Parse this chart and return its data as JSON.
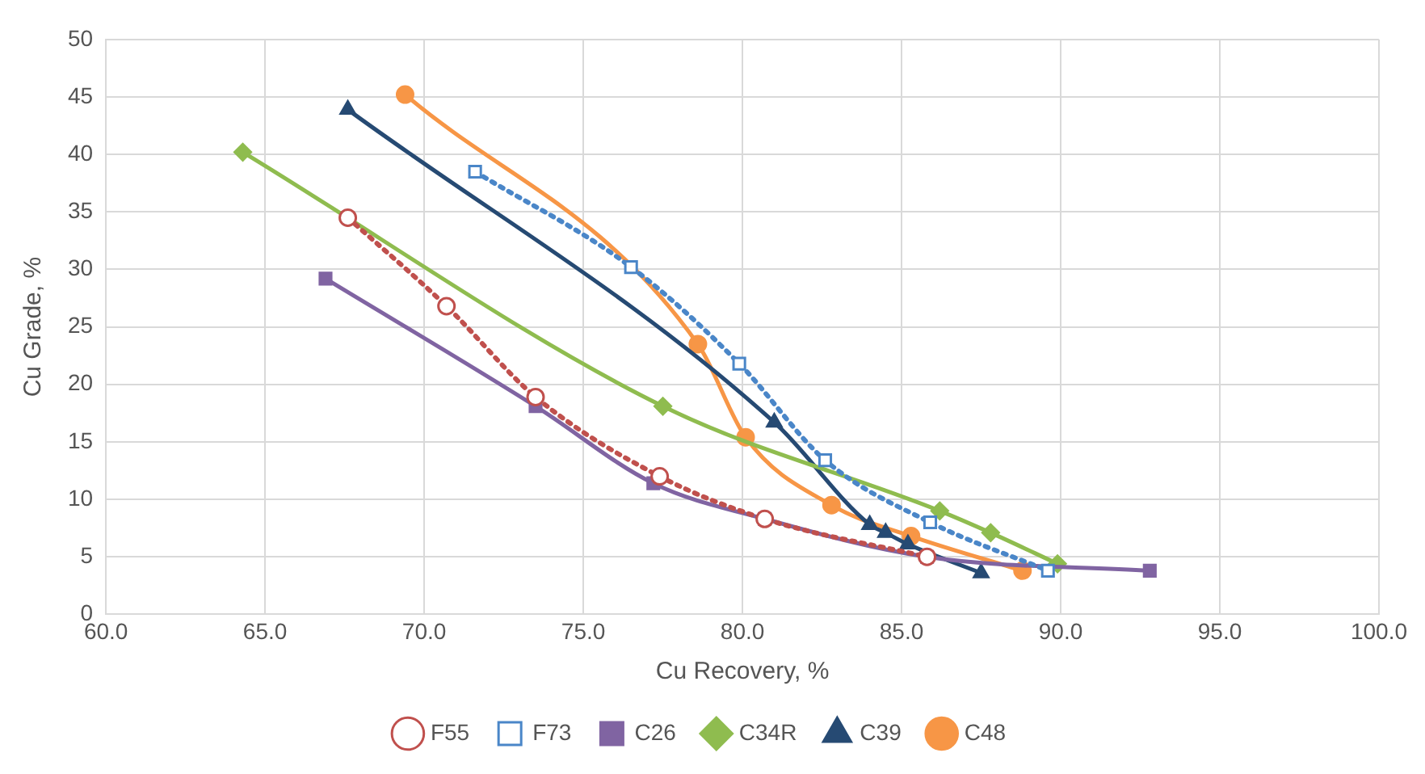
{
  "chart_data": {
    "type": "line",
    "xlabel": "Cu Recovery, %",
    "ylabel": "Cu Grade, %",
    "xlim": [
      60,
      100
    ],
    "xticks": [
      {
        "value": 60,
        "label": "60.0"
      },
      {
        "value": 65,
        "label": "65.0"
      },
      {
        "value": 70,
        "label": "70.0"
      },
      {
        "value": 75,
        "label": "75.0"
      },
      {
        "value": 80,
        "label": "80.0"
      },
      {
        "value": 85,
        "label": "85.0"
      },
      {
        "value": 90,
        "label": "90.0"
      },
      {
        "value": 95,
        "label": "95.0"
      },
      {
        "value": 100,
        "label": "100.0"
      }
    ],
    "ylim": [
      0,
      50
    ],
    "yticks": [
      0,
      5,
      10,
      15,
      20,
      25,
      30,
      35,
      40,
      45,
      50
    ],
    "grid": true,
    "legend": "bottom",
    "series": [
      {
        "name": "F55",
        "color": "#c0504d",
        "marker": "circle",
        "line_style": "dotted",
        "x": [
          67.6,
          70.7,
          73.5,
          77.4,
          80.7,
          85.8
        ],
        "values": [
          34.5,
          26.8,
          18.9,
          12.0,
          8.3,
          5.0
        ]
      },
      {
        "name": "F73",
        "color": "#4a86c8",
        "marker": "square",
        "line_style": "dotted",
        "x": [
          71.6,
          76.5,
          79.9,
          82.6,
          85.9,
          89.6
        ],
        "values": [
          38.5,
          30.2,
          21.8,
          13.4,
          8.0,
          3.8
        ]
      },
      {
        "name": "C26",
        "color": "#8064a2",
        "marker": "square",
        "line_style": "solid",
        "x": [
          66.9,
          73.5,
          77.2,
          80.7,
          85.8,
          92.8
        ],
        "values": [
          29.2,
          18.1,
          11.4,
          8.3,
          5.0,
          3.8
        ]
      },
      {
        "name": "C34R",
        "color": "#8fbc4f",
        "marker": "diamond",
        "line_style": "solid",
        "x": [
          64.3,
          77.5,
          86.2,
          87.8,
          89.9
        ],
        "values": [
          40.2,
          18.1,
          9.0,
          7.1,
          4.4
        ]
      },
      {
        "name": "C39",
        "color": "#264a73",
        "marker": "triangle",
        "line_style": "solid",
        "x": [
          67.6,
          81.0,
          84.0,
          84.5,
          85.2,
          87.5
        ],
        "values": [
          43.9,
          16.7,
          7.8,
          7.1,
          6.1,
          3.6
        ]
      },
      {
        "name": "C48",
        "color": "#f79646",
        "marker": "circle",
        "line_style": "solid",
        "x": [
          69.4,
          78.6,
          80.1,
          82.8,
          85.3,
          88.8
        ],
        "values": [
          45.2,
          23.5,
          15.4,
          9.5,
          6.8,
          3.8
        ]
      }
    ]
  }
}
